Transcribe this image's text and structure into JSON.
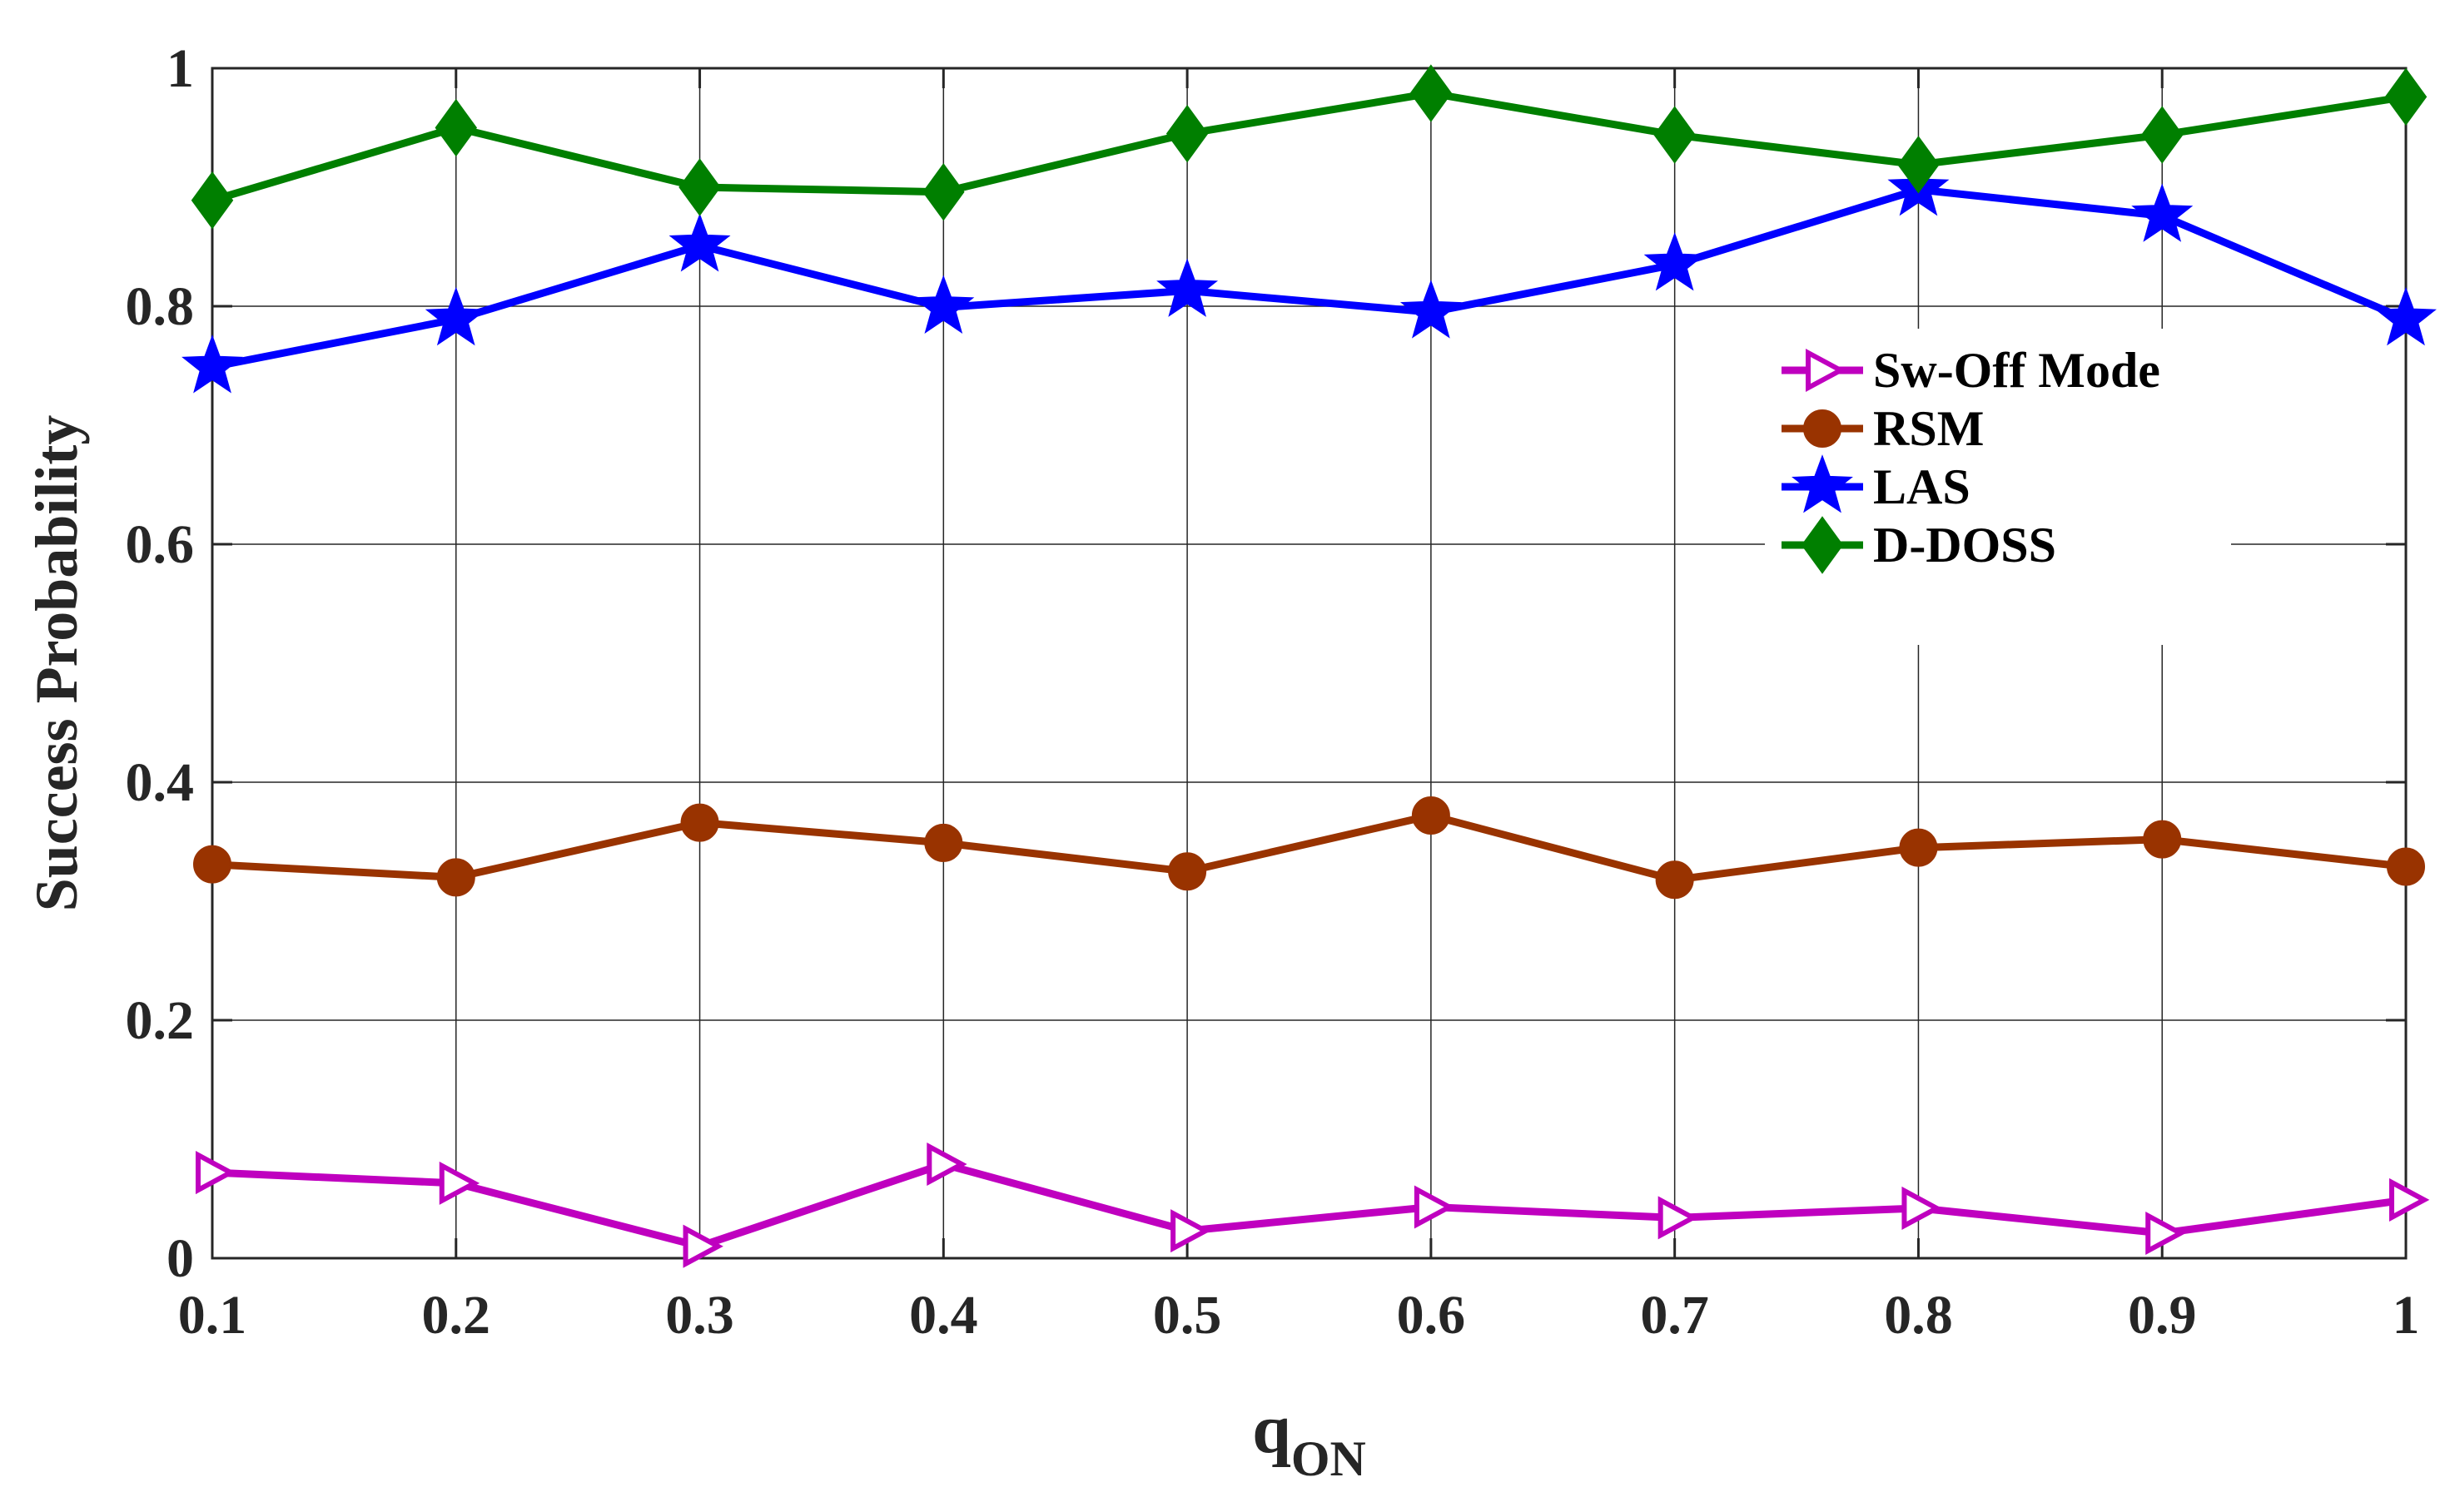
{
  "chart_data": {
    "type": "line",
    "title": "",
    "xlabel": "q",
    "xlabel_subscript": "ON",
    "ylabel": "Success Probability",
    "xlim": [
      0.1,
      1
    ],
    "ylim": [
      0,
      1
    ],
    "x": [
      0.1,
      0.2,
      0.3,
      0.4,
      0.5,
      0.6,
      0.7,
      0.8,
      0.9,
      1
    ],
    "xtick_labels": [
      "0.1",
      "0.2",
      "0.3",
      "0.4",
      "0.5",
      "0.6",
      "0.7",
      "0.8",
      "0.9",
      "1"
    ],
    "ytick_values": [
      0,
      0.2,
      0.4,
      0.6,
      0.8,
      1
    ],
    "ytick_labels": [
      "0",
      "0.2",
      "0.4",
      "0.6",
      "0.8",
      "1"
    ],
    "grid": true,
    "legend_position": "right",
    "series": [
      {
        "name": "Sw-Off Mode",
        "color": "#bf00bf",
        "marker": "triangle-right-open",
        "values": [
          0.072,
          0.063,
          0.01,
          0.079,
          0.023,
          0.043,
          0.034,
          0.042,
          0.021,
          0.049
        ]
      },
      {
        "name": "RSM",
        "color": "#993300",
        "marker": "circle",
        "values": [
          0.331,
          0.32,
          0.366,
          0.349,
          0.325,
          0.372,
          0.318,
          0.345,
          0.352,
          0.329
        ]
      },
      {
        "name": "LAS",
        "color": "#0000ff",
        "marker": "star",
        "values": [
          0.749,
          0.789,
          0.851,
          0.799,
          0.813,
          0.795,
          0.835,
          0.898,
          0.876,
          0.789
        ]
      },
      {
        "name": "D-DOSS",
        "color": "#007f00",
        "marker": "diamond",
        "values": [
          0.889,
          0.95,
          0.9,
          0.896,
          0.945,
          0.979,
          0.944,
          0.919,
          0.944,
          0.976
        ]
      }
    ]
  }
}
